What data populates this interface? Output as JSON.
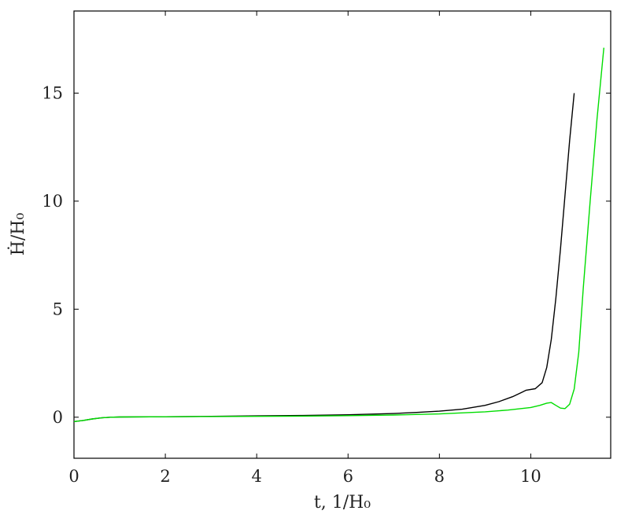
{
  "chart_data": {
    "type": "line",
    "title": "",
    "xlabel": "t, 1/H₀",
    "ylabel": "Ḣ/H₀",
    "xlim": [
      0,
      11.75
    ],
    "ylim": [
      -1.9,
      18.8
    ],
    "x_ticks": [
      0,
      2,
      4,
      6,
      8,
      10
    ],
    "y_ticks": [
      0,
      5,
      10,
      15
    ],
    "grid": false,
    "legend": "none",
    "series": [
      {
        "color": "#000000",
        "points": [
          [
            0.0,
            -0.2
          ],
          [
            0.2,
            -0.15
          ],
          [
            0.4,
            -0.08
          ],
          [
            0.6,
            -0.03
          ],
          [
            0.8,
            0.0
          ],
          [
            1.0,
            0.01
          ],
          [
            2.0,
            0.02
          ],
          [
            3.0,
            0.04
          ],
          [
            4.0,
            0.06
          ],
          [
            5.0,
            0.08
          ],
          [
            6.0,
            0.11
          ],
          [
            7.0,
            0.17
          ],
          [
            7.5,
            0.22
          ],
          [
            8.0,
            0.28
          ],
          [
            8.5,
            0.37
          ],
          [
            9.0,
            0.55
          ],
          [
            9.3,
            0.72
          ],
          [
            9.6,
            0.95
          ],
          [
            9.8,
            1.15
          ],
          [
            9.9,
            1.25
          ],
          [
            10.1,
            1.32
          ],
          [
            10.25,
            1.6
          ],
          [
            10.35,
            2.3
          ],
          [
            10.45,
            3.6
          ],
          [
            10.55,
            5.5
          ],
          [
            10.65,
            7.8
          ],
          [
            10.75,
            10.3
          ],
          [
            10.85,
            12.8
          ],
          [
            10.95,
            15.0
          ]
        ]
      },
      {
        "color": "#00dd00",
        "points": [
          [
            0.0,
            -0.2
          ],
          [
            0.2,
            -0.15
          ],
          [
            0.4,
            -0.08
          ],
          [
            0.6,
            -0.03
          ],
          [
            0.8,
            0.0
          ],
          [
            1.0,
            0.01
          ],
          [
            2.0,
            0.02
          ],
          [
            3.0,
            0.03
          ],
          [
            4.0,
            0.04
          ],
          [
            5.0,
            0.05
          ],
          [
            6.0,
            0.07
          ],
          [
            7.0,
            0.1
          ],
          [
            8.0,
            0.15
          ],
          [
            9.0,
            0.25
          ],
          [
            9.5,
            0.33
          ],
          [
            10.0,
            0.45
          ],
          [
            10.2,
            0.55
          ],
          [
            10.35,
            0.65
          ],
          [
            10.45,
            0.68
          ],
          [
            10.55,
            0.55
          ],
          [
            10.65,
            0.42
          ],
          [
            10.75,
            0.4
          ],
          [
            10.85,
            0.6
          ],
          [
            10.95,
            1.3
          ],
          [
            11.05,
            3.0
          ],
          [
            11.15,
            6.0
          ],
          [
            11.3,
            10.0
          ],
          [
            11.45,
            13.8
          ],
          [
            11.6,
            17.1
          ]
        ]
      }
    ]
  }
}
